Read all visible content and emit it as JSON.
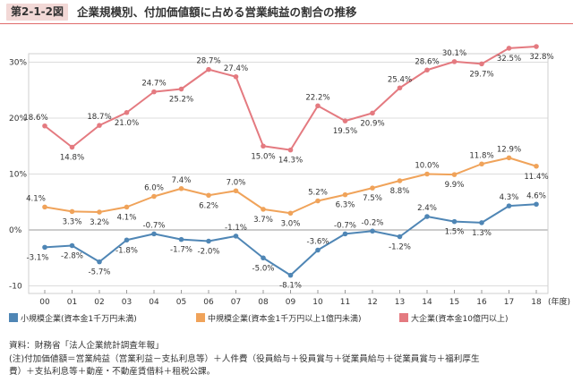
{
  "header": {
    "badge": "第2-1-2図",
    "title": "企業規模別、付加価値額に占める営業純益の割合の推移"
  },
  "colors": {
    "small": "#4f86b5",
    "medium": "#f0a35a",
    "large": "#e47a80",
    "grid": "#dcdcdc",
    "zero_line": "#999999",
    "header_rule": "#e06b6b",
    "badge_bg": "#f2d8d6"
  },
  "chart_data": {
    "type": "line",
    "categories": [
      "00",
      "01",
      "02",
      "03",
      "04",
      "05",
      "06",
      "07",
      "08",
      "09",
      "10",
      "11",
      "12",
      "13",
      "14",
      "15",
      "16",
      "17",
      "18"
    ],
    "x_unit": "(年度)",
    "y_ticks": [
      "30%",
      "20%",
      "10%",
      "0%",
      "-10"
    ],
    "ylim": [
      -10,
      33
    ],
    "grid": true,
    "series": [
      {
        "name": "小規模企業(資本金1千万円未満)",
        "color_key": "small",
        "values": [
          -3.1,
          -2.8,
          -5.7,
          -1.8,
          -0.7,
          -1.7,
          -2.0,
          -1.1,
          -5.0,
          -8.1,
          -3.6,
          -0.7,
          -0.2,
          -1.2,
          2.4,
          1.5,
          1.3,
          4.3,
          4.6
        ],
        "labels": [
          "-3.1%",
          "-2.8%",
          "-5.7%",
          "-1.8%",
          "-0.7%",
          "-1.7%",
          "-2.0%",
          "-1.1%",
          "-5.0%",
          "-8.1%",
          "-3.6%",
          "-0.7%",
          "-0.2%",
          "-1.2%",
          "2.4%",
          "1.5%",
          "1.3%",
          "4.3%",
          "4.6%"
        ]
      },
      {
        "name": "中規模企業(資本金1千万円以上1億円未満)",
        "color_key": "medium",
        "values": [
          4.1,
          3.3,
          3.2,
          4.1,
          6.0,
          7.4,
          6.2,
          7.0,
          3.7,
          3.0,
          5.2,
          6.3,
          7.5,
          8.8,
          10.0,
          9.9,
          11.8,
          12.9,
          11.4
        ],
        "labels": [
          "4.1%",
          "3.3%",
          "3.2%",
          "4.1%",
          "6.0%",
          "7.4%",
          "6.2%",
          "7.0%",
          "3.7%",
          "3.0%",
          "5.2%",
          "6.3%",
          "7.5%",
          "8.8%",
          "10.0%",
          "9.9%",
          "11.8%",
          "12.9%",
          "11.4%"
        ]
      },
      {
        "name": "大企業(資本金10億円以上)",
        "color_key": "large",
        "values": [
          18.6,
          14.8,
          18.7,
          21.0,
          24.7,
          25.2,
          28.7,
          27.4,
          15.0,
          14.3,
          22.2,
          19.5,
          20.9,
          25.4,
          28.6,
          30.1,
          29.7,
          32.5,
          32.8
        ],
        "labels": [
          "18.6%",
          "14.8%",
          "18.7%",
          "21.0%",
          "24.7%",
          "25.2%",
          "28.7%",
          "27.4%",
          "15.0%",
          "14.3%",
          "22.2%",
          "19.5%",
          "20.9%",
          "25.4%",
          "28.6%",
          "30.1%",
          "29.7%",
          "32.5%",
          "32.8%"
        ]
      }
    ]
  },
  "notes": [
    "資料：財務省「法人企業統計調査年報」",
    "(注)付加価値額＝営業純益（営業利益－支払利息等）＋人件費（役員給与＋役員賞与＋従業員給与＋従業員賞与＋福利厚生",
    "費）＋支払利息等＋動産・不動産賃借料＋租税公課。"
  ]
}
